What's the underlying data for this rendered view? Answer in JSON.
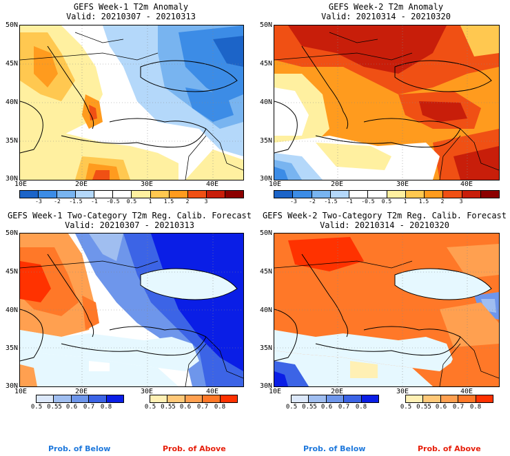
{
  "panels": [
    {
      "title": "GEFS Week-1 T2m Anomaly",
      "valid": "Valid: 20210307 - 20210313",
      "lat_labels": [
        "50N",
        "45N",
        "40N",
        "35N",
        "30N"
      ],
      "lon_labels": [
        "10E",
        "20E",
        "30E",
        "40E"
      ],
      "colorbar": {
        "colors": [
          "#1c64c8",
          "#3c8ce6",
          "#78b4f0",
          "#b4d8fa",
          "#ffffff",
          "#ffffff",
          "#fff0a0",
          "#ffc850",
          "#ff9b1e",
          "#f05014",
          "#c81e0a",
          "#8c0000"
        ],
        "labels": [
          "-3",
          "-2",
          "-1.5",
          "-1",
          "-0.5",
          "0.5",
          "1",
          "1.5",
          "2",
          "3"
        ]
      }
    },
    {
      "title": "GEFS Week-2 T2m Anomaly",
      "valid": "Valid: 20210314 - 20210320",
      "lat_labels": [
        "50N",
        "45N",
        "40N",
        "35N",
        "30N"
      ],
      "lon_labels": [
        "10E",
        "20E",
        "30E",
        "40E"
      ],
      "colorbar": {
        "colors": [
          "#1c64c8",
          "#3c8ce6",
          "#78b4f0",
          "#b4d8fa",
          "#ffffff",
          "#ffffff",
          "#fff0a0",
          "#ffc850",
          "#ff9b1e",
          "#f05014",
          "#c81e0a",
          "#8c0000"
        ],
        "labels": [
          "-3",
          "-2",
          "-1.5",
          "-1",
          "-0.5",
          "0.5",
          "1",
          "1.5",
          "2",
          "3"
        ]
      }
    },
    {
      "title": "GEFS Week-1 Two-Category T2m Reg. Calib. Forecast",
      "valid": "Valid: 20210307 - 20210313",
      "lat_labels": [
        "50N",
        "45N",
        "40N",
        "35N",
        "30N"
      ],
      "lon_labels": [
        "10E",
        "20E",
        "30E",
        "40E"
      ],
      "below_bar": {
        "colors": [
          "#dce8fa",
          "#a0bef0",
          "#6e96eb",
          "#3c64e6",
          "#0a1ee6"
        ],
        "labels": [
          "0.5",
          "0.55",
          "0.6",
          "0.7",
          "0.8"
        ]
      },
      "above_bar": {
        "colors": [
          "#fff0b4",
          "#ffc878",
          "#ffa050",
          "#ff7828",
          "#ff3200"
        ],
        "labels": [
          "0.5",
          "0.55",
          "0.6",
          "0.7",
          "0.8"
        ]
      }
    },
    {
      "title": "GEFS Week-2 Two-Category T2m Reg. Calib. Forecast",
      "valid": "Valid: 20210314 - 20210320",
      "lat_labels": [
        "50N",
        "45N",
        "40N",
        "35N",
        "30N"
      ],
      "lon_labels": [
        "10E",
        "20E",
        "30E",
        "40E"
      ],
      "below_bar": {
        "colors": [
          "#dce8fa",
          "#a0bef0",
          "#6e96eb",
          "#3c64e6",
          "#0a1ee6"
        ],
        "labels": [
          "0.5",
          "0.55",
          "0.6",
          "0.7",
          "0.8"
        ]
      },
      "above_bar": {
        "colors": [
          "#fff0b4",
          "#ffc878",
          "#ffa050",
          "#ff7828",
          "#ff3200"
        ],
        "labels": [
          "0.5",
          "0.55",
          "0.6",
          "0.7",
          "0.8"
        ]
      }
    }
  ],
  "legend": {
    "below_text": "Prob. of Below",
    "above_text": "Prob. of Above",
    "below_color": "#1e78dc",
    "above_color": "#e61e0a"
  }
}
